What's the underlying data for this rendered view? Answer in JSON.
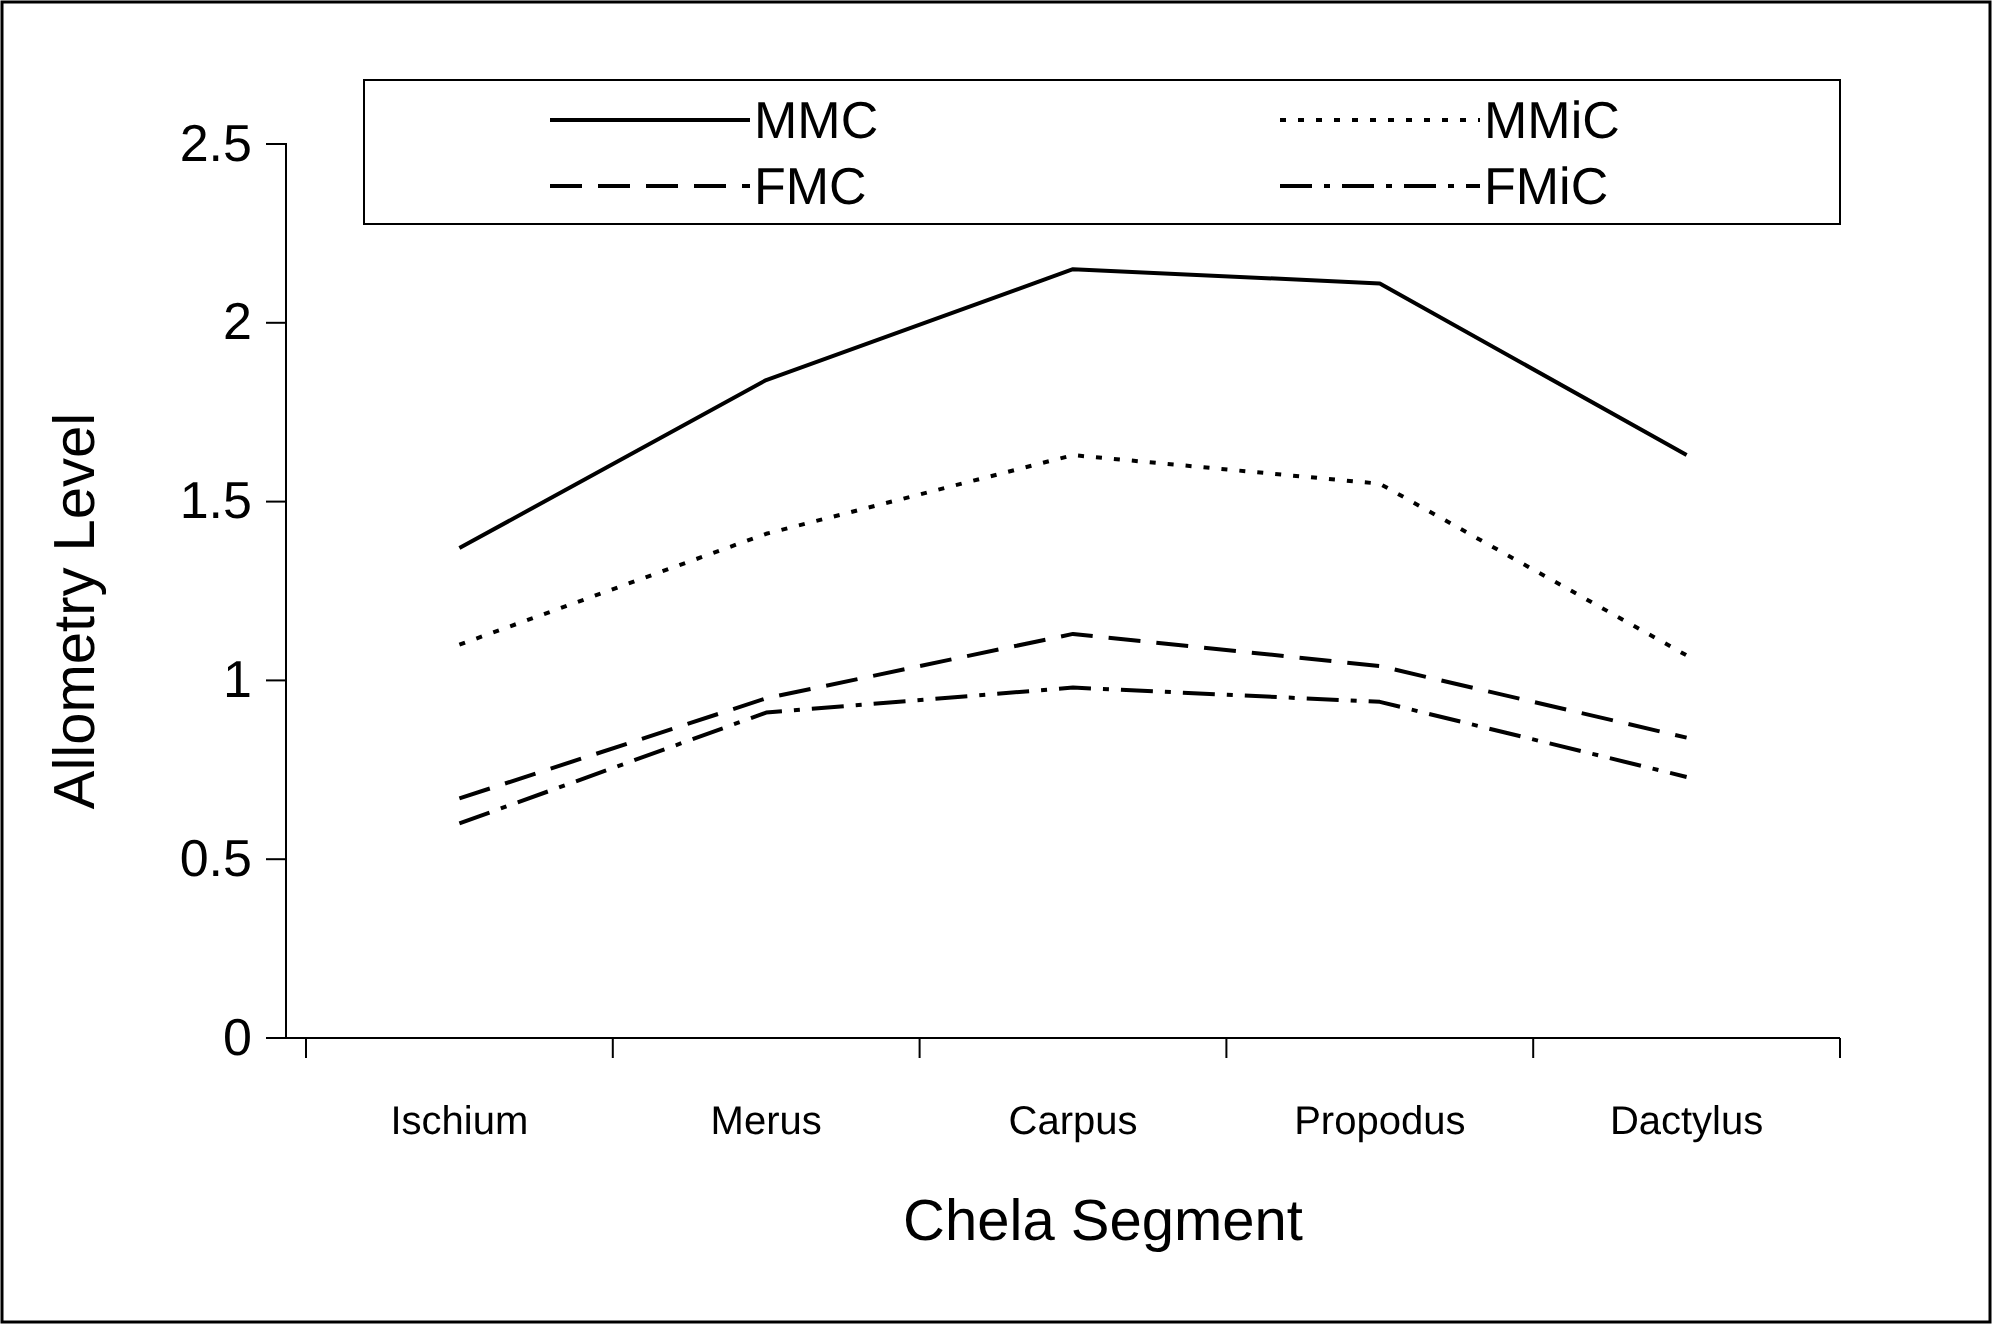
{
  "chart_data": {
    "type": "line",
    "xlabel": "Chela Segment",
    "ylabel": "Allometry Level",
    "categories": [
      "Ischium",
      "Merus",
      "Carpus",
      "Propodus",
      "Dactylus"
    ],
    "series": [
      {
        "name": "MMC",
        "color": "#000000",
        "line_style": "solid",
        "values": [
          1.37,
          1.84,
          2.15,
          2.11,
          1.63
        ]
      },
      {
        "name": "MMiC",
        "color": "#000000",
        "line_style": "dotted",
        "values": [
          1.1,
          1.41,
          1.63,
          1.55,
          1.07
        ]
      },
      {
        "name": "FMC",
        "color": "#000000",
        "line_style": "dashed",
        "values": [
          0.67,
          0.95,
          1.13,
          1.04,
          0.84
        ]
      },
      {
        "name": "FMiC",
        "color": "#000000",
        "line_style": "dashdot",
        "values": [
          0.6,
          0.91,
          0.98,
          0.94,
          0.73
        ]
      }
    ],
    "ylim": [
      0,
      2.5
    ],
    "yticks": [
      0,
      0.5,
      1,
      1.5,
      2,
      2.5
    ],
    "grid": false,
    "legend": "top",
    "marker": "none"
  }
}
